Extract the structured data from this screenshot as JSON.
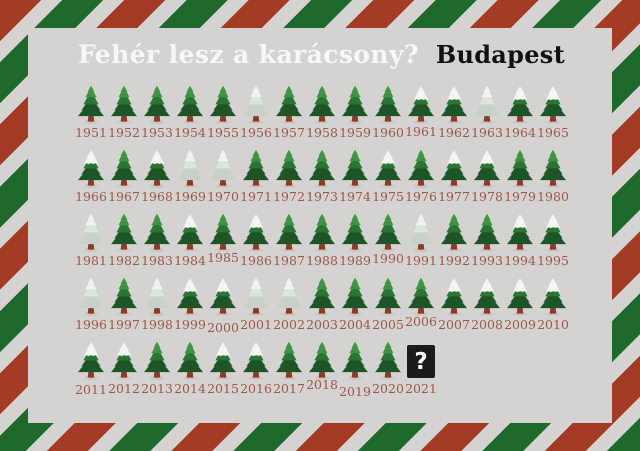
{
  "header": {
    "title": "Fehér lesz a karácsony?",
    "city": "Budapest"
  },
  "colors": {
    "background": "#d4d3d1",
    "stripe_red": "#a33b25",
    "stripe_green": "#20692c",
    "title_text": "#f8f7f5",
    "city_text": "#111111",
    "year_text": "#9c564b",
    "tree_green_dark": "#1d5526",
    "tree_green_mid": "#2a7533",
    "tree_green_light": "#3f9342",
    "snow_white": "#f0f4f0",
    "trunk_brown": "#8a3c2a",
    "question_box": "#1b1b1b"
  },
  "chart_data": {
    "type": "pictogram",
    "title": "Fehér lesz a karácsony?",
    "location": "Budapest",
    "years_per_row": 15,
    "unknown_symbol": "?",
    "state_values": [
      "green",
      "snowtop",
      "snowfull",
      "unknown"
    ],
    "years": [
      1951,
      1952,
      1953,
      1954,
      1955,
      1956,
      1957,
      1958,
      1959,
      1960,
      1961,
      1962,
      1963,
      1964,
      1965,
      1966,
      1967,
      1968,
      1969,
      1970,
      1971,
      1972,
      1973,
      1974,
      1975,
      1976,
      1977,
      1978,
      1979,
      1980,
      1981,
      1982,
      1983,
      1984,
      1985,
      1986,
      1987,
      1988,
      1989,
      1990,
      1991,
      1992,
      1993,
      1994,
      1995,
      1996,
      1997,
      1998,
      1999,
      2000,
      2001,
      2002,
      2003,
      2004,
      2005,
      2006,
      2007,
      2008,
      2009,
      2010,
      2011,
      2012,
      2013,
      2014,
      2015,
      2016,
      2017,
      2018,
      2019,
      2020,
      2021
    ],
    "states": [
      "green",
      "green",
      "green",
      "green",
      "green",
      "snowfull",
      "green",
      "green",
      "green",
      "green",
      "snowtop",
      "snowtop",
      "snowfull",
      "snowtop",
      "snowtop",
      "snowtop",
      "green",
      "snowtop",
      "snowfull",
      "snowfull",
      "green",
      "green",
      "green",
      "green",
      "snowtop",
      "green",
      "snowtop",
      "snowtop",
      "green",
      "green",
      "snowfull",
      "green",
      "green",
      "snowtop",
      "green",
      "snowtop",
      "green",
      "green",
      "green",
      "green",
      "snowfull",
      "green",
      "green",
      "snowtop",
      "snowtop",
      "snowfull",
      "green",
      "snowfull",
      "snowtop",
      "snowtop",
      "snowfull",
      "snowfull",
      "green",
      "green",
      "green",
      "green",
      "snowtop",
      "snowtop",
      "snowtop",
      "snowtop",
      "snowtop",
      "snowtop",
      "green",
      "green",
      "snowtop",
      "snowtop",
      "green",
      "green",
      "green",
      "green",
      "unknown"
    ]
  }
}
